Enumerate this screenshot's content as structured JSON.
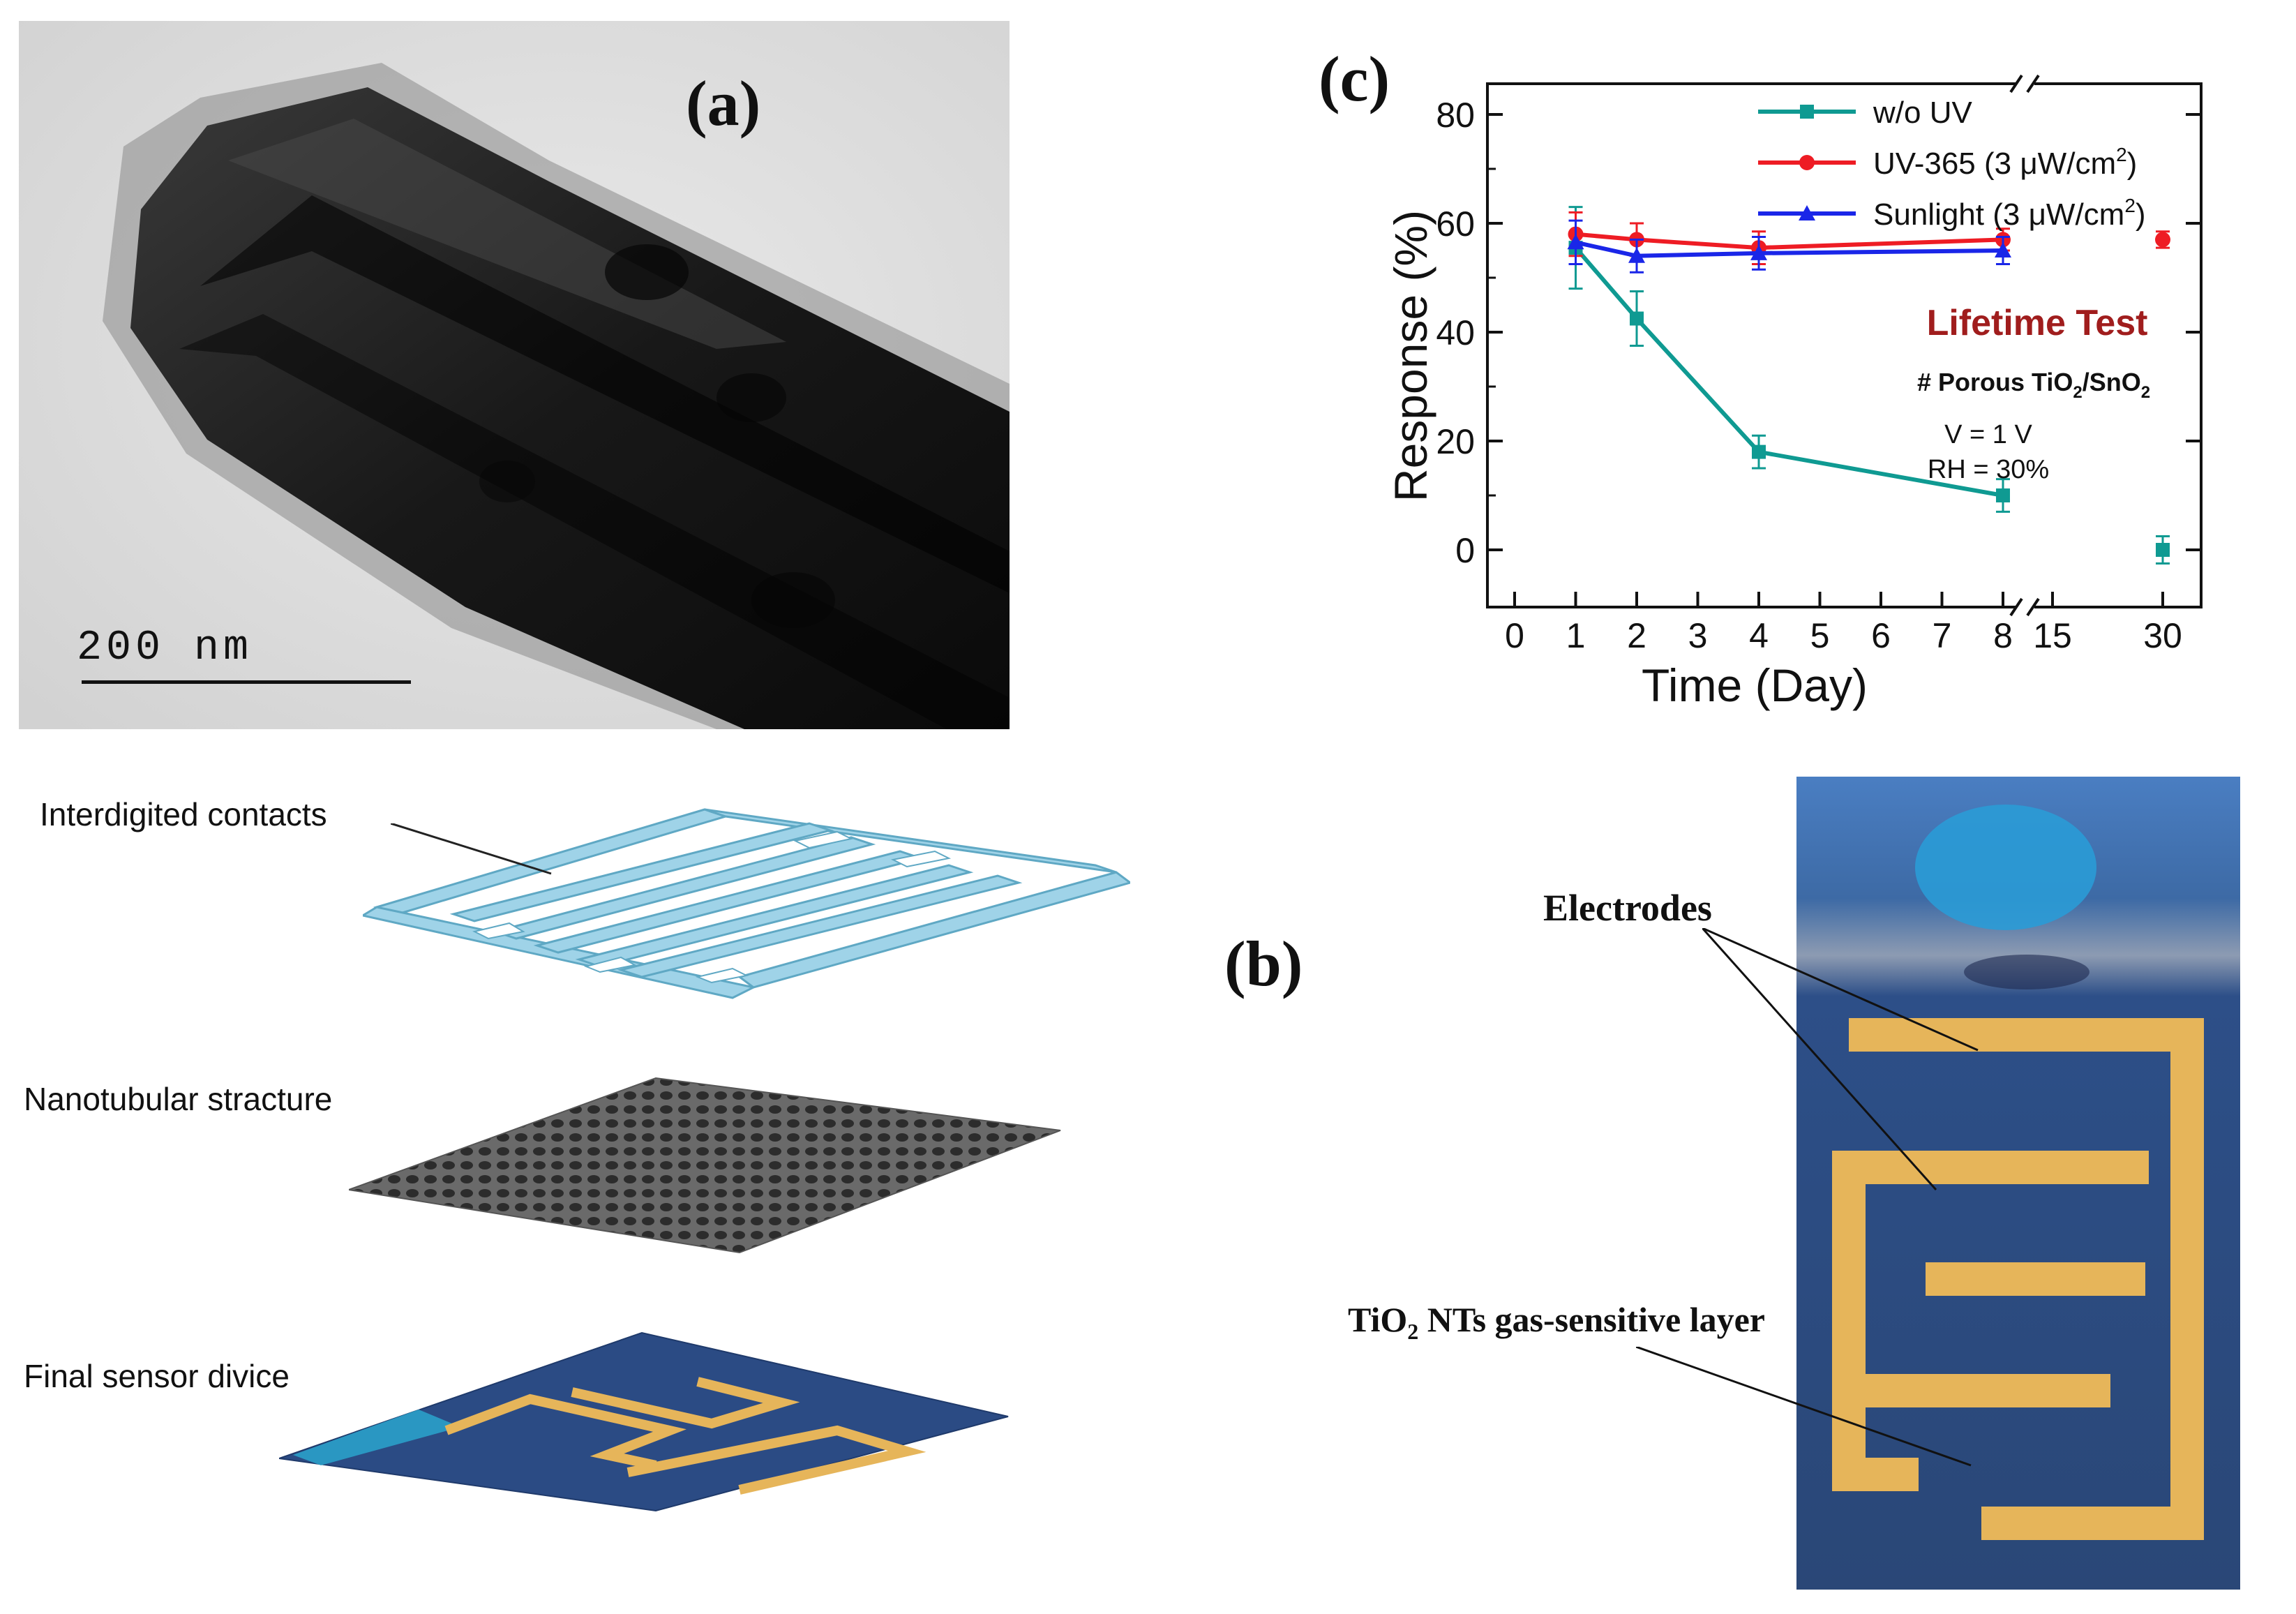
{
  "panels": {
    "a": {
      "label": "(a)",
      "scale_bar_text": "200 nm"
    },
    "b": {
      "label": "(b)",
      "layers": [
        "Interdigited contacts",
        "Nanotubular stracture",
        "Final sensor divice"
      ],
      "photo_annotations": {
        "electrodes": "Electrodes",
        "layer_prefix": "TiO",
        "layer_sub": "2",
        "layer_rest": " NTs gas-sensitive layer"
      }
    },
    "c": {
      "label": "(c)"
    }
  },
  "colors": {
    "teal": "#0f9a92",
    "red": "#ee1c24",
    "blue": "#1a26e8",
    "lifetime": "#a01d1d",
    "electrode_gold": "#e6b55a",
    "substrate_blue": "#2b4b84"
  },
  "chart_data": {
    "type": "line",
    "xlabel": "Time (Day)",
    "ylabel": "Response (%)",
    "ylim": [
      0,
      80
    ],
    "y_ticks": [
      "0",
      "20",
      "40",
      "60",
      "80"
    ],
    "x_ticks": [
      "0",
      "1",
      "2",
      "3",
      "4",
      "5",
      "6",
      "7",
      "8",
      "15",
      "30"
    ],
    "x_axis_break": "between 8 and 15",
    "grid": false,
    "legend_position": "top-right",
    "series": [
      {
        "name": "w/o UV",
        "marker": "square",
        "x": [
          1,
          2,
          4,
          8,
          30
        ],
        "y": [
          55.5,
          42.5,
          18.0,
          10.0,
          0.0
        ],
        "err": [
          7.5,
          5.0,
          3.0,
          3.0,
          2.5
        ]
      },
      {
        "name": "UV-365 (3 μW/cm²)",
        "name_main": "UV-365 (3 μW/cm",
        "name_sup": "2",
        "name_tail": ")",
        "marker": "circle",
        "x": [
          1,
          2,
          4,
          8,
          30
        ],
        "y": [
          58.0,
          57.0,
          55.5,
          57.0,
          57.0
        ],
        "err": [
          4.0,
          3.0,
          3.0,
          2.0,
          1.5
        ]
      },
      {
        "name": "Sunlight (3 μW/cm²)",
        "name_main": "Sunlight (3 μW/cm",
        "name_sup": "2",
        "name_tail": ")",
        "marker": "triangle",
        "x": [
          1,
          2,
          4,
          8
        ],
        "y": [
          56.5,
          54.0,
          54.5,
          55.0
        ],
        "err": [
          4.0,
          3.0,
          3.0,
          2.5
        ]
      }
    ],
    "annotations": {
      "title": "Lifetime Test",
      "material_prefix": "# Porous TiO",
      "material_sub1": "2",
      "material_mid": "/SnO",
      "material_sub2": "2",
      "voltage": "V = 1 V",
      "humidity": "RH = 30%"
    }
  }
}
